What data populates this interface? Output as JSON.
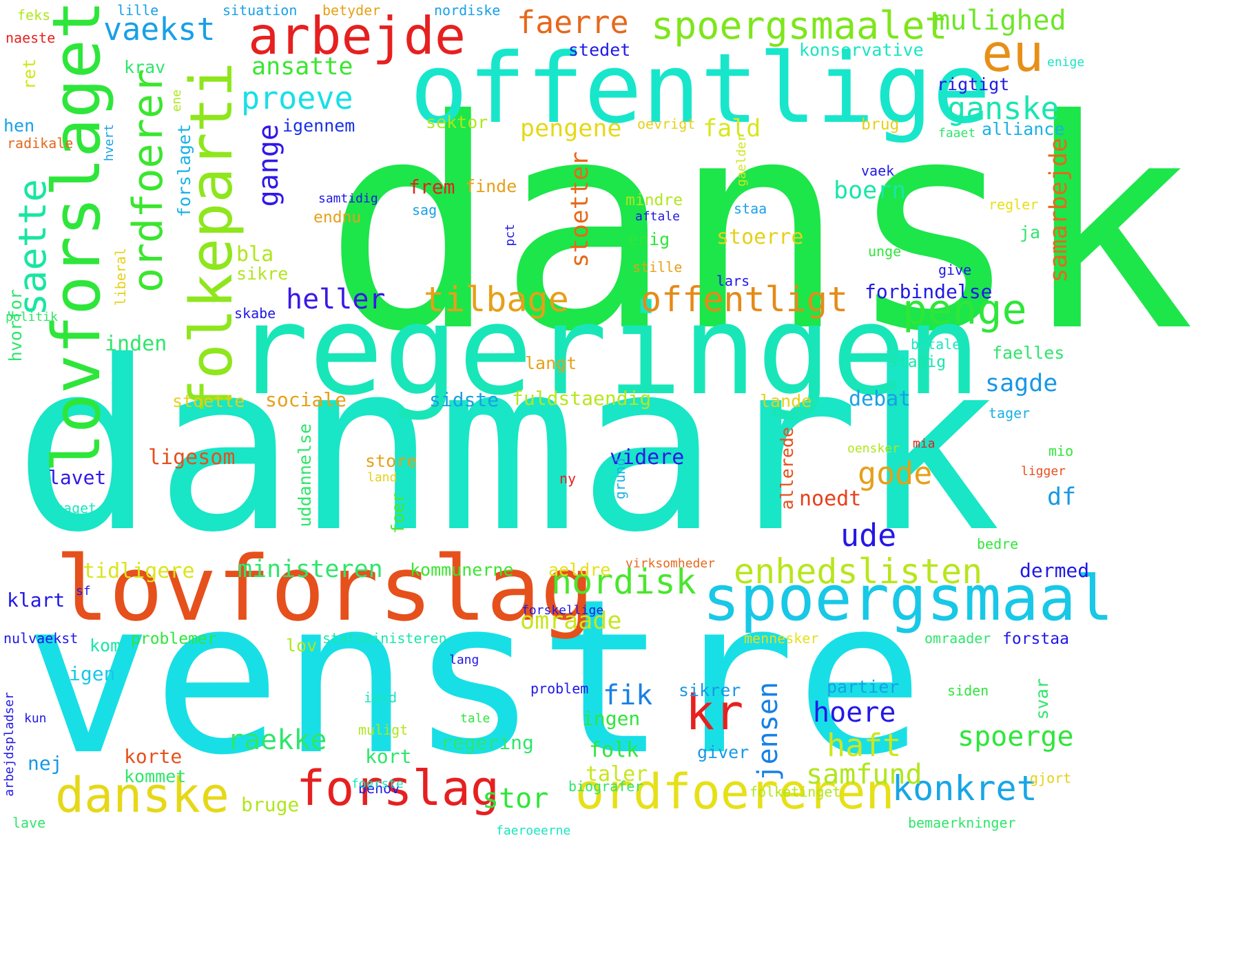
{
  "words": [
    {
      "t": "dansk",
      "c": "#1ce64a"
    },
    {
      "t": "danmark",
      "c": "#18e6c6"
    },
    {
      "t": "venstre",
      "c": "#18dfe6"
    },
    {
      "t": "regeringen",
      "c": "#18e6b8"
    },
    {
      "t": "offentlige",
      "c": "#18e6cb"
    },
    {
      "t": "lovforslag",
      "c": "#e6501c"
    },
    {
      "t": "spoergsmaal",
      "c": "#18c8e6"
    },
    {
      "t": "arbejde",
      "c": "#e62020"
    },
    {
      "t": "lovforslaget",
      "c": "#2ee63a"
    },
    {
      "t": "folkeparti",
      "c": "#8ee61c"
    },
    {
      "t": "forslag",
      "c": "#e62020"
    },
    {
      "t": "ordfoereren",
      "c": "#e6e018"
    },
    {
      "t": "danske",
      "c": "#e6d818"
    },
    {
      "t": "eu",
      "c": "#e69018"
    },
    {
      "t": "spoergsmaalet",
      "c": "#7ee61c"
    },
    {
      "t": "ordfoerer",
      "c": "#3ae62e"
    },
    {
      "t": "saette",
      "c": "#18e6a0"
    },
    {
      "t": "offentligt",
      "c": "#e68a18"
    },
    {
      "t": "tilbage",
      "c": "#e6a018"
    },
    {
      "t": "penge",
      "c": "#2ee63a"
    },
    {
      "t": "enhedslisten",
      "c": "#b8e61c"
    },
    {
      "t": "nordisk",
      "c": "#4ae62e"
    },
    {
      "t": "konkret",
      "c": "#18a6e6"
    },
    {
      "t": "kr",
      "c": "#e62020"
    },
    {
      "t": "vaekst",
      "c": "#18a0e6"
    },
    {
      "t": "faerre",
      "c": "#e6681c"
    },
    {
      "t": "mulighed",
      "c": "#6ee62a"
    },
    {
      "t": "ganske",
      "c": "#18e6b0"
    },
    {
      "t": "proeve",
      "c": "#18dfe6"
    },
    {
      "t": "gange",
      "c": "#3018e6"
    },
    {
      "t": "heller",
      "c": "#3a18e6"
    },
    {
      "t": "ude",
      "c": "#2418e6"
    },
    {
      "t": "gode",
      "c": "#e6a018"
    },
    {
      "t": "ministeren",
      "c": "#2ee66a"
    },
    {
      "t": "omraade",
      "c": "#c8e61c"
    },
    {
      "t": "samarbejde",
      "c": "#e6681c"
    },
    {
      "t": "stoetter",
      "c": "#e66818"
    },
    {
      "t": "fald",
      "c": "#d8e61c"
    },
    {
      "t": "pengene",
      "c": "#e6d818"
    },
    {
      "t": "sagde",
      "c": "#1898e6"
    },
    {
      "t": "ansatte",
      "c": "#3ae62e"
    },
    {
      "t": "konservative",
      "c": "#18e6c0"
    },
    {
      "t": "stedet",
      "c": "#2018e6"
    },
    {
      "t": "krav",
      "c": "#2ee66a"
    },
    {
      "t": "igennem",
      "c": "#1830e6"
    },
    {
      "t": "sektor",
      "c": "#b0e61c"
    },
    {
      "t": "boern",
      "c": "#18e6a8"
    },
    {
      "t": "frem",
      "c": "#e62020"
    },
    {
      "t": "finde",
      "c": "#e6a018"
    },
    {
      "t": "stoerre",
      "c": "#e6d018"
    },
    {
      "t": "bla",
      "c": "#b0e61c"
    },
    {
      "t": "sikre",
      "c": "#b0e61c"
    },
    {
      "t": "inden",
      "c": "#2ee66a"
    },
    {
      "t": "langt",
      "c": "#e6a018"
    },
    {
      "t": "stoette",
      "c": "#e6d018"
    },
    {
      "t": "sociale",
      "c": "#e6a018"
    },
    {
      "t": "sidste",
      "c": "#18a0e6"
    },
    {
      "t": "fuldstaendig",
      "c": "#b8e61c"
    },
    {
      "t": "debat",
      "c": "#18a0e6"
    },
    {
      "t": "lande",
      "c": "#e6d018"
    },
    {
      "t": "ligesom",
      "c": "#e6501c"
    },
    {
      "t": "videre",
      "c": "#3018e6"
    },
    {
      "t": "lavet",
      "c": "#3018e6"
    },
    {
      "t": "store",
      "c": "#e6a018"
    },
    {
      "t": "noedt",
      "c": "#e6401c"
    },
    {
      "t": "df",
      "c": "#1898e6"
    },
    {
      "t": "tidligere",
      "c": "#d8e61c"
    },
    {
      "t": "kommunerne",
      "c": "#3ae62e"
    },
    {
      "t": "aeldre",
      "c": "#e6e018"
    },
    {
      "t": "dermed",
      "c": "#2018e6"
    },
    {
      "t": "klart",
      "c": "#2018e6"
    },
    {
      "t": "fik",
      "c": "#1880e6"
    },
    {
      "t": "jensen",
      "c": "#1880e6"
    },
    {
      "t": "hoere",
      "c": "#2418e6"
    },
    {
      "t": "partier",
      "c": "#18a0e6"
    },
    {
      "t": "svar",
      "c": "#2ee66a"
    },
    {
      "t": "spoerge",
      "c": "#2ee63a"
    },
    {
      "t": "raekke",
      "c": "#2ee66a"
    },
    {
      "t": "haft",
      "c": "#d0e61c"
    },
    {
      "t": "samfund",
      "c": "#b0e61c"
    },
    {
      "t": "folk",
      "c": "#2ee63a"
    },
    {
      "t": "taler",
      "c": "#c8e61c"
    },
    {
      "t": "korte",
      "c": "#e6501c"
    },
    {
      "t": "kommet",
      "c": "#2ee66a"
    },
    {
      "t": "bruge",
      "c": "#b0e61c"
    },
    {
      "t": "stor",
      "c": "#2ee63a"
    },
    {
      "t": "nej",
      "c": "#1898e6"
    },
    {
      "t": "igen",
      "c": "#18c8e6"
    },
    {
      "t": "kom",
      "c": "#18e6a8"
    },
    {
      "t": "lov",
      "c": "#b0e61c"
    },
    {
      "t": "regering",
      "c": "#2ee66a"
    },
    {
      "t": "ingen",
      "c": "#2ee63a"
    },
    {
      "t": "kort",
      "c": "#2ee66a"
    },
    {
      "t": "behov",
      "c": "#2018e6"
    },
    {
      "t": "sikrer",
      "c": "#1898e6"
    },
    {
      "t": "giver",
      "c": "#1898e6"
    },
    {
      "t": "uddannelse",
      "c": "#2ee66a"
    },
    {
      "t": "foer",
      "c": "#4ae62e"
    },
    {
      "t": "allerede",
      "c": "#e6501c"
    },
    {
      "t": "forbindelse",
      "c": "#2018e6"
    },
    {
      "t": "faelles",
      "c": "#2ee66a"
    },
    {
      "t": "alliance",
      "c": "#18b0e6"
    },
    {
      "t": "rigtigt",
      "c": "#2018e6"
    },
    {
      "t": "hvorfor",
      "c": "#2ee66a"
    },
    {
      "t": "forslaget",
      "c": "#18b0e6"
    },
    {
      "t": "hen",
      "c": "#18a0e6"
    },
    {
      "t": "ret",
      "c": "#d0e61c"
    },
    {
      "t": "lille",
      "c": "#18a0e6"
    },
    {
      "t": "situation",
      "c": "#18a0e6"
    },
    {
      "t": "betyder",
      "c": "#e6a018"
    },
    {
      "t": "nordiske",
      "c": "#18a0e6"
    },
    {
      "t": "feks",
      "c": "#b0e61c"
    },
    {
      "t": "naeste",
      "c": "#e62020"
    },
    {
      "t": "radikale",
      "c": "#e6681c"
    },
    {
      "t": "hvert",
      "c": "#18a0e6"
    },
    {
      "t": "ene",
      "c": "#b0e61c"
    },
    {
      "t": "oevrigt",
      "c": "#e6d018"
    },
    {
      "t": "brug",
      "c": "#e6d018"
    },
    {
      "t": "faaet",
      "c": "#2ee66a"
    },
    {
      "t": "enige",
      "c": "#18e6c0"
    },
    {
      "t": "gaelder",
      "c": "#d0e61c"
    },
    {
      "t": "vaek",
      "c": "#2018e6"
    },
    {
      "t": "samtidig",
      "c": "#2018e6"
    },
    {
      "t": "sag",
      "c": "#18a0e6"
    },
    {
      "t": "endnu",
      "c": "#e6a018"
    },
    {
      "t": "mindre",
      "c": "#b0e61c"
    },
    {
      "t": "staa",
      "c": "#18a0e6"
    },
    {
      "t": "aftale",
      "c": "#2018e6"
    },
    {
      "t": "regler",
      "c": "#e6e018"
    },
    {
      "t": "ja",
      "c": "#2ee66a"
    },
    {
      "t": "enig",
      "c": "#2ee63a"
    },
    {
      "t": "pct",
      "c": "#2018e6"
    },
    {
      "t": "liberal",
      "c": "#e6d018"
    },
    {
      "t": "stille",
      "c": "#e6a018"
    },
    {
      "t": "unge",
      "c": "#2ee63a"
    },
    {
      "t": "lars",
      "c": "#2018e6"
    },
    {
      "t": "give",
      "c": "#2018e6"
    },
    {
      "t": "politik",
      "c": "#2ee66a"
    },
    {
      "t": "skabe",
      "c": "#2018e6"
    },
    {
      "t": "betale",
      "c": "#18e6c0"
    },
    {
      "t": "stadig",
      "c": "#18e6a8"
    },
    {
      "t": "tager",
      "c": "#18b0e6"
    },
    {
      "t": "oensker",
      "c": "#b0e61c"
    },
    {
      "t": "mia",
      "c": "#e62020"
    },
    {
      "t": "mio",
      "c": "#2ee63a"
    },
    {
      "t": "ligger",
      "c": "#e6501c"
    },
    {
      "t": "land",
      "c": "#e6d018"
    },
    {
      "t": "ny",
      "c": "#e62020"
    },
    {
      "t": "grund",
      "c": "#18b0e6"
    },
    {
      "t": "taget",
      "c": "#18e6c0"
    },
    {
      "t": "bedre",
      "c": "#2ee63a"
    },
    {
      "t": "virksomheder",
      "c": "#e6681c"
    },
    {
      "t": "sf",
      "c": "#2018e6"
    },
    {
      "t": "forskellige",
      "c": "#2018e6"
    },
    {
      "t": "nulvaekst",
      "c": "#2018e6"
    },
    {
      "t": "problemer",
      "c": "#2ee63a"
    },
    {
      "t": "statsministeren",
      "c": "#18e6a8"
    },
    {
      "t": "mennesker",
      "c": "#e6e018"
    },
    {
      "t": "omraader",
      "c": "#2ee66a"
    },
    {
      "t": "forstaa",
      "c": "#2018e6"
    },
    {
      "t": "lang",
      "c": "#2018e6"
    },
    {
      "t": "arbejdspladser",
      "c": "#2018e6"
    },
    {
      "t": "problem",
      "c": "#2018e6"
    },
    {
      "t": "siden",
      "c": "#2ee63a"
    },
    {
      "t": "imod",
      "c": "#18e6c0"
    },
    {
      "t": "muligt",
      "c": "#b0e61c"
    },
    {
      "t": "kun",
      "c": "#2018e6"
    },
    {
      "t": "tale",
      "c": "#2ee63a"
    },
    {
      "t": "foerste",
      "c": "#18e6c0"
    },
    {
      "t": "biografer",
      "c": "#2ee66a"
    },
    {
      "t": "folketinget",
      "c": "#b0e61c"
    },
    {
      "t": "gjort",
      "c": "#e6d018"
    },
    {
      "t": "lave",
      "c": "#2ee66a"
    },
    {
      "t": "faeroeerne",
      "c": "#18e6c0"
    },
    {
      "t": "bemaerkninger",
      "c": "#2ee66a"
    }
  ]
}
